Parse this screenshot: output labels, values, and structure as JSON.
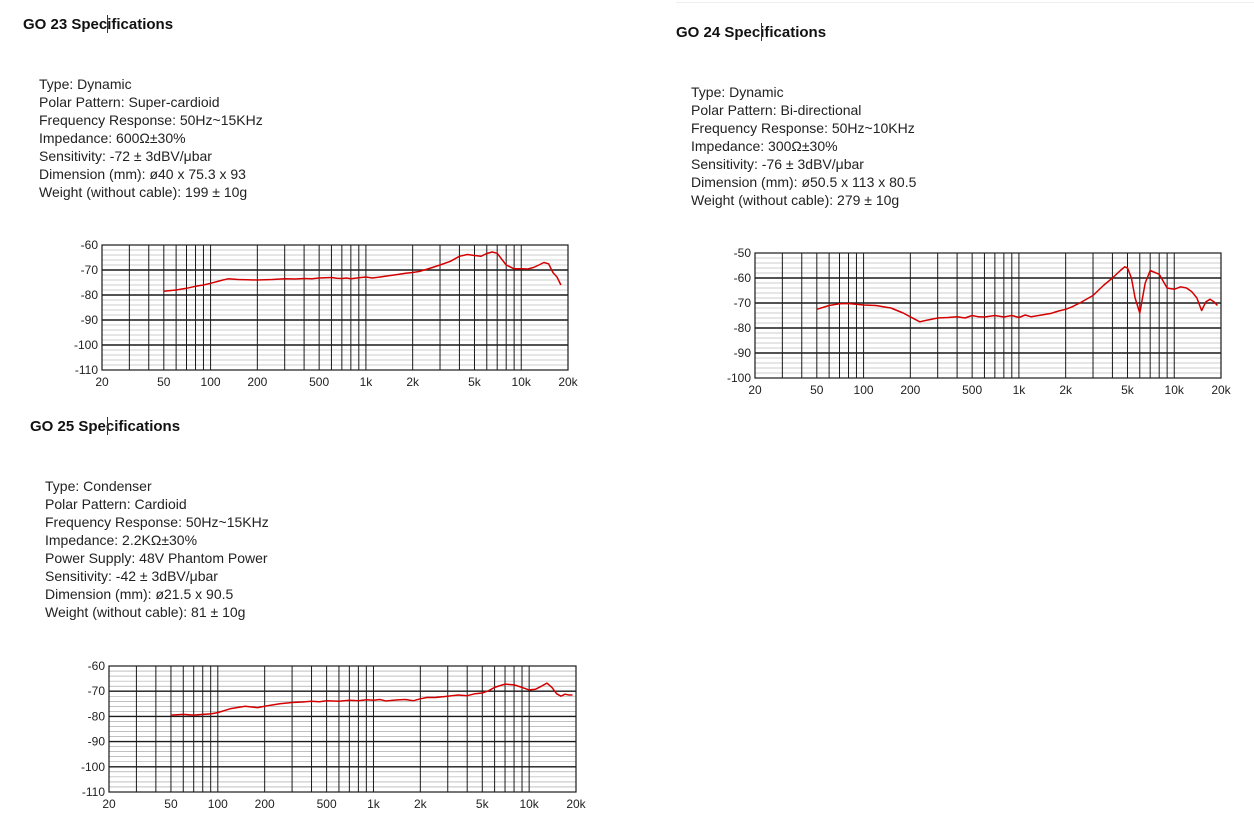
{
  "panels": [
    {
      "title": "GO 23 Specifications",
      "specs": [
        "Type: Dynamic",
        "Polar Pattern: Super-cardioid",
        "Frequency Response: 50Hz~15KHz",
        "Impedance: 600Ω±30%",
        "Sensitivity: -72 ± 3dBV/μbar",
        "Dimension (mm): ø40 x 75.3 x 93",
        "Weight (without cable): 199 ± 10g"
      ]
    },
    {
      "title": "GO 24 Specifications",
      "specs": [
        "Type: Dynamic",
        "Polar Pattern: Bi-directional",
        "Frequency Response: 50Hz~10KHz",
        "Impedance: 300Ω±30%",
        "Sensitivity: -76 ± 3dBV/μbar",
        "Dimension (mm): ø50.5 x 113 x 80.5",
        "Weight (without cable): 279 ± 10g"
      ]
    },
    {
      "title": "GO 25 Specifications",
      "specs": [
        "Type: Condenser",
        "Polar Pattern: Cardioid",
        "Frequency Response: 50Hz~15KHz",
        "Impedance: 2.2KΩ±30%",
        "Power Supply: 48V Phantom Power",
        "Sensitivity: -42 ± 3dBV/μbar",
        "Dimension (mm): ø21.5 x 90.5",
        "Weight (without cable): 81 ± 10g"
      ]
    }
  ],
  "chart_data": [
    {
      "type": "line",
      "title": "",
      "xlabel": "",
      "ylabel": "",
      "x_scale": "log",
      "xlim": [
        20,
        20000
      ],
      "ylim": [
        -110,
        -60
      ],
      "x_tick_labels": [
        "20",
        "50",
        "100",
        "200",
        "500",
        "1k",
        "2k",
        "5k",
        "10k",
        "20k"
      ],
      "y_tick_labels": [
        "-60",
        "-70",
        "-80",
        "-90",
        "-100",
        "-110"
      ],
      "grid": true,
      "line_color": "#d40000",
      "series": [
        {
          "x": [
            50,
            60,
            70,
            80,
            90,
            100,
            120,
            130,
            150,
            200,
            250,
            300,
            350,
            400,
            450,
            500,
            600,
            650,
            700,
            750,
            800,
            900,
            1000,
            1100,
            1200,
            1400,
            1600,
            1800,
            2000,
            2200,
            2500,
            3000,
            3500,
            4000,
            4500,
            5000,
            5500,
            6000,
            6500,
            7000,
            8000,
            9000,
            10000,
            11000,
            12000,
            13000,
            14000,
            15000,
            16000,
            17000,
            18000
          ],
          "y": [
            -78.5,
            -78,
            -77.3,
            -76.5,
            -76,
            -75.3,
            -74,
            -73.5,
            -73.8,
            -74,
            -73.8,
            -73.5,
            -73.6,
            -73.4,
            -73.5,
            -73.2,
            -73,
            -73.3,
            -73.4,
            -73.2,
            -73.5,
            -73.1,
            -72.8,
            -73.2,
            -72.9,
            -72.3,
            -71.8,
            -71.3,
            -71,
            -70.6,
            -69.6,
            -68,
            -66.5,
            -64.5,
            -63.8,
            -64.2,
            -64.5,
            -63.4,
            -62.8,
            -63.3,
            -68,
            -69.5,
            -69.5,
            -69.6,
            -69,
            -68,
            -67,
            -67.5,
            -71,
            -72.8,
            -76
          ]
        }
      ]
    },
    {
      "type": "line",
      "title": "",
      "xlabel": "",
      "ylabel": "",
      "x_scale": "log",
      "xlim": [
        20,
        20000
      ],
      "ylim": [
        -100,
        -50
      ],
      "x_tick_labels": [
        "20",
        "50",
        "100",
        "200",
        "500",
        "1k",
        "2k",
        "5k",
        "10k",
        "20k"
      ],
      "y_tick_labels": [
        "-50",
        "-60",
        "-70",
        "-80",
        "-90",
        "-100"
      ],
      "grid": true,
      "line_color": "#d40000",
      "series": [
        {
          "x": [
            50,
            60,
            70,
            80,
            100,
            120,
            150,
            180,
            200,
            230,
            250,
            300,
            350,
            400,
            450,
            500,
            550,
            600,
            700,
            800,
            900,
            1000,
            1100,
            1200,
            1400,
            1600,
            1800,
            2000,
            2200,
            2500,
            3000,
            3500,
            4000,
            4500,
            4800,
            5000,
            5300,
            5600,
            6000,
            6500,
            7000,
            8000,
            9000,
            10000,
            11000,
            12000,
            13000,
            14000,
            15000,
            16000,
            17000,
            18000,
            19000
          ],
          "y": [
            -72.5,
            -71,
            -70.3,
            -70.2,
            -70.8,
            -71,
            -72,
            -74,
            -75.5,
            -77.5,
            -77,
            -76,
            -75.8,
            -75.5,
            -76,
            -75,
            -75.5,
            -75.6,
            -75,
            -75.6,
            -75,
            -75.8,
            -74.8,
            -75.5,
            -74.8,
            -74.2,
            -73.2,
            -72.5,
            -71.5,
            -69.8,
            -67,
            -63,
            -60,
            -57,
            -55.5,
            -56,
            -60,
            -68,
            -74,
            -62,
            -57,
            -58.5,
            -64,
            -64.5,
            -63.5,
            -64,
            -65.5,
            -68,
            -73,
            -69.5,
            -68.5,
            -69.5,
            -71
          ]
        }
      ]
    },
    {
      "type": "line",
      "title": "",
      "xlabel": "",
      "ylabel": "",
      "x_scale": "log",
      "xlim": [
        20,
        20000
      ],
      "ylim": [
        -110,
        -60
      ],
      "x_tick_labels": [
        "20",
        "50",
        "100",
        "200",
        "500",
        "1k",
        "2k",
        "5k",
        "10k",
        "20k"
      ],
      "y_tick_labels": [
        "-60",
        "-70",
        "-80",
        "-90",
        "-100",
        "-110"
      ],
      "grid": true,
      "line_color": "#d40000",
      "series": [
        {
          "x": [
            50,
            60,
            70,
            80,
            90,
            100,
            120,
            150,
            180,
            200,
            250,
            300,
            350,
            400,
            450,
            500,
            600,
            700,
            800,
            900,
            1000,
            1100,
            1200,
            1400,
            1600,
            1800,
            2000,
            2200,
            2500,
            3000,
            3500,
            4000,
            4500,
            5000,
            5500,
            6000,
            7000,
            8000,
            9000,
            10000,
            11000,
            12000,
            13000,
            14000,
            15000,
            16000,
            17000,
            18000,
            19000
          ],
          "y": [
            -79.5,
            -79.2,
            -79.5,
            -79.2,
            -79,
            -78.5,
            -77,
            -76,
            -76.5,
            -76,
            -75,
            -74.5,
            -74.3,
            -74,
            -74.2,
            -73.8,
            -74,
            -73.6,
            -73.8,
            -73.4,
            -73.6,
            -73.3,
            -73.9,
            -73.5,
            -73.3,
            -73.8,
            -73,
            -72.5,
            -72.5,
            -72,
            -71.5,
            -71.8,
            -71,
            -70.7,
            -69.8,
            -68.5,
            -67.2,
            -67.5,
            -68.5,
            -69.5,
            -69.2,
            -68,
            -66.8,
            -68.5,
            -71,
            -72,
            -71.2,
            -71.5,
            -71.5
          ]
        }
      ]
    }
  ]
}
